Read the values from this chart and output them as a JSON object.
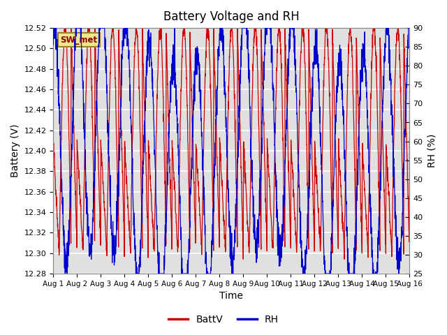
{
  "title": "Battery Voltage and RH",
  "xlabel": "Time",
  "ylabel_left": "Battery (V)",
  "ylabel_right": "RH (%)",
  "station_label": "SW_met",
  "ylim_left": [
    12.28,
    12.52
  ],
  "ylim_right": [
    25,
    90
  ],
  "yticks_left": [
    12.28,
    12.3,
    12.32,
    12.34,
    12.36,
    12.38,
    12.4,
    12.42,
    12.44,
    12.46,
    12.48,
    12.5,
    12.52
  ],
  "yticks_right": [
    25,
    30,
    35,
    40,
    45,
    50,
    55,
    60,
    65,
    70,
    75,
    80,
    85,
    90
  ],
  "xtick_labels": [
    "Aug 1",
    "Aug 2",
    "Aug 3",
    "Aug 4",
    "Aug 5",
    "Aug 6",
    "Aug 7",
    "Aug 8",
    "Aug 9",
    "Aug 10",
    "Aug 11",
    "Aug 12",
    "Aug 13",
    "Aug 14",
    "Aug 15",
    "Aug 16"
  ],
  "color_batt": "#cc0000",
  "color_rh": "#0000cc",
  "background_color": "#ffffff",
  "plot_bg_color": "#e0e0e0",
  "grid_color": "#ffffff",
  "legend_labels": [
    "BattV",
    "RH"
  ],
  "n_days": 15,
  "seed": 42
}
